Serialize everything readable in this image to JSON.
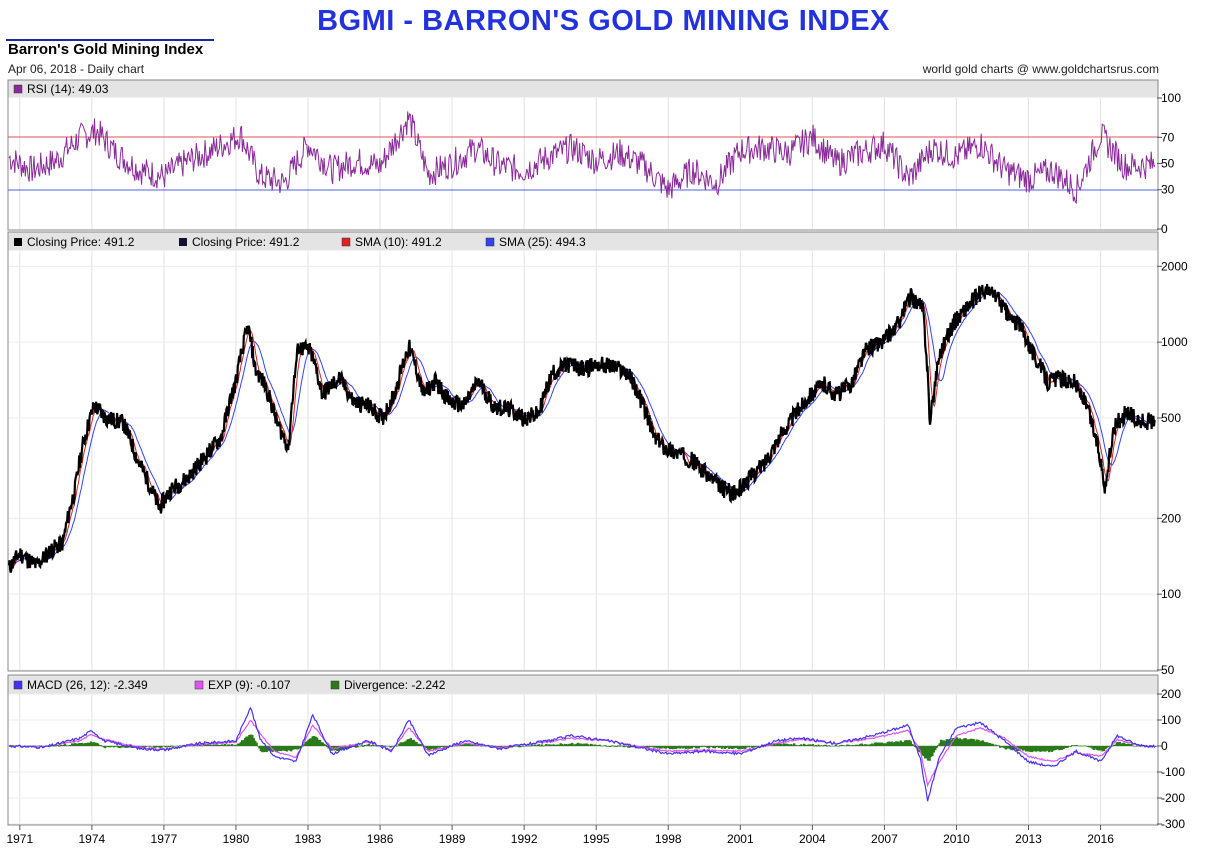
{
  "header": {
    "banner": "BGMI - BARRON'S GOLD MINING INDEX",
    "title": "Barron's Gold Mining Index",
    "subtitle": "Apr 06, 2018 - Daily chart",
    "credit": "world gold charts @ www.goldchartsrus.com"
  },
  "panels": {
    "rsi_label": "RSI (14): 49.03",
    "price_label1": "Closing Price: 491.2",
    "price_label2": "Closing Price: 491.2",
    "sma10_label": "SMA (10): 491.2",
    "sma25_label": "SMA (25): 494.3",
    "macd_label": "MACD (26, 12): -2.349",
    "exp_label": "EXP (9): -0.107",
    "div_label": "Divergence: -2.242"
  },
  "colors": {
    "banner": "#2233dd",
    "price": "#000000",
    "sma10": "#dd2222",
    "sma25": "#3344ee",
    "rsi": "#8a2b9a",
    "macd": "#4433ee",
    "exp": "#dd55ee",
    "divergence": "#2a7a1a",
    "rsi_70": "#e05050",
    "rsi_30": "#5060e0"
  },
  "chart_data": [
    {
      "type": "line",
      "name": "rsi",
      "ylim": [
        0,
        100
      ],
      "yticks": [
        "100",
        "70",
        "50",
        "30",
        "0"
      ],
      "reference_lines": [
        70,
        30
      ],
      "x": [
        1970.5,
        1971.5,
        1972.5,
        1973.5,
        1974.2,
        1975,
        1976,
        1977,
        1978,
        1979,
        1980.2,
        1981,
        1982,
        1983,
        1984,
        1985,
        1986,
        1987.2,
        1988,
        1989,
        1990,
        1991,
        1992,
        1993,
        1994,
        1995,
        1996,
        1997,
        1998,
        1999,
        2000,
        2001,
        2002,
        2003,
        2004,
        2005,
        2006,
        2007,
        2008,
        2009,
        2010,
        2011,
        2012,
        2013,
        2014,
        2015,
        2016,
        2017,
        2018.2
      ],
      "values": [
        55,
        45,
        52,
        70,
        75,
        58,
        45,
        40,
        52,
        60,
        72,
        40,
        35,
        65,
        45,
        52,
        48,
        85,
        42,
        50,
        62,
        48,
        45,
        55,
        62,
        52,
        58,
        48,
        30,
        45,
        35,
        60,
        62,
        58,
        70,
        50,
        58,
        65,
        38,
        62,
        55,
        65,
        45,
        38,
        45,
        30,
        72,
        48,
        49.03
      ]
    },
    {
      "type": "line",
      "name": "price",
      "scale": "log",
      "ylim": [
        50,
        2300
      ],
      "yticks": [
        "2000",
        "1000",
        "500",
        "200",
        "100",
        "50"
      ],
      "x_tick_labels": [
        "1971",
        "1974",
        "1977",
        "1980",
        "1983",
        "1986",
        "1989",
        "1992",
        "1995",
        "1998",
        "2001",
        "2004",
        "2007",
        "2010",
        "2013",
        "2016"
      ],
      "x": [
        1970.5,
        1971,
        1971.7,
        1972.3,
        1972.8,
        1973.3,
        1973.7,
        1974.1,
        1974.6,
        1975.3,
        1975.9,
        1976.5,
        1976.8,
        1977.3,
        1978,
        1978.7,
        1979.4,
        1980,
        1980.5,
        1980.8,
        1981.2,
        1981.7,
        1982.2,
        1982.6,
        1983.1,
        1983.6,
        1984.3,
        1984.9,
        1985.5,
        1986.1,
        1986.6,
        1987.2,
        1987.8,
        1988.3,
        1988.9,
        1989.5,
        1990.1,
        1990.7,
        1991.4,
        1992,
        1992.6,
        1993.2,
        1993.9,
        1994.5,
        1995,
        1995.7,
        1996.3,
        1996.9,
        1997.4,
        1997.9,
        1998.5,
        1999,
        1999.6,
        2000.2,
        2000.8,
        2001.4,
        2002,
        2002.7,
        2003.3,
        2003.9,
        2004.5,
        2005,
        2005.6,
        2006.3,
        2006.9,
        2007.5,
        2008.1,
        2008.6,
        2008.9,
        2009.3,
        2009.9,
        2010.5,
        2011.1,
        2011.6,
        2012.2,
        2012.7,
        2013.2,
        2013.8,
        2014.3,
        2014.9,
        2015.4,
        2015.9,
        2016.2,
        2016.6,
        2017.1,
        2017.6,
        2018.2
      ],
      "values": [
        125,
        145,
        130,
        150,
        160,
        260,
        420,
        560,
        500,
        480,
        340,
        260,
        220,
        260,
        290,
        350,
        420,
        700,
        1150,
        780,
        680,
        480,
        380,
        960,
        920,
        620,
        720,
        580,
        560,
        500,
        620,
        960,
        620,
        700,
        580,
        560,
        700,
        560,
        540,
        500,
        520,
        760,
        820,
        780,
        820,
        800,
        760,
        580,
        420,
        380,
        360,
        340,
        300,
        265,
        250,
        290,
        330,
        430,
        520,
        620,
        680,
        620,
        680,
        950,
        1000,
        1150,
        1520,
        1350,
        460,
        900,
        1200,
        1400,
        1600,
        1550,
        1250,
        1150,
        900,
        700,
        720,
        700,
        560,
        380,
        260,
        470,
        530,
        480,
        491.2
      ]
    },
    {
      "type": "line",
      "name": "macd",
      "ylim": [
        -300,
        200
      ],
      "yticks": [
        "200",
        "100",
        "0",
        "-100",
        "-200",
        "-300"
      ],
      "x": [
        1970.5,
        1972,
        1973.5,
        1974,
        1974.5,
        1976,
        1977,
        1978.5,
        1980,
        1980.6,
        1981,
        1981.6,
        1982.5,
        1983.2,
        1984,
        1985.5,
        1986.5,
        1987.2,
        1988,
        1989.5,
        1991,
        1993,
        1994,
        1995.5,
        1997,
        1998,
        1999.5,
        2001,
        2002.5,
        2003.5,
        2005,
        2006.5,
        2008,
        2008.5,
        2008.8,
        2009.3,
        2010,
        2011,
        2012,
        2013,
        2014,
        2015,
        2016,
        2016.7,
        2017.5,
        2018.2
      ],
      "macd": [
        0,
        -5,
        30,
        60,
        20,
        -10,
        -15,
        10,
        20,
        150,
        30,
        -40,
        -60,
        120,
        -30,
        20,
        -20,
        100,
        -35,
        20,
        -10,
        20,
        40,
        20,
        -10,
        -30,
        -20,
        -30,
        20,
        30,
        10,
        40,
        80,
        -50,
        -210,
        -40,
        70,
        90,
        20,
        -60,
        -80,
        -20,
        -60,
        40,
        5,
        -2.349
      ],
      "exp": [
        0,
        -3,
        20,
        45,
        25,
        -5,
        -12,
        5,
        15,
        100,
        50,
        -20,
        -45,
        80,
        -10,
        15,
        -15,
        70,
        -20,
        10,
        -5,
        15,
        30,
        20,
        -5,
        -20,
        -15,
        -20,
        10,
        25,
        10,
        30,
        60,
        -20,
        -150,
        -60,
        40,
        70,
        30,
        -40,
        -60,
        -25,
        -40,
        25,
        5,
        -0.107
      ],
      "divergence": [
        0,
        -2,
        10,
        15,
        -5,
        -5,
        -3,
        5,
        5,
        50,
        -20,
        -20,
        -15,
        40,
        -20,
        5,
        -5,
        30,
        -15,
        10,
        -5,
        5,
        10,
        0,
        -5,
        -10,
        -5,
        -10,
        10,
        5,
        0,
        10,
        20,
        -30,
        -60,
        20,
        30,
        20,
        -10,
        -20,
        -20,
        5,
        -20,
        15,
        0,
        -2.242
      ]
    }
  ]
}
